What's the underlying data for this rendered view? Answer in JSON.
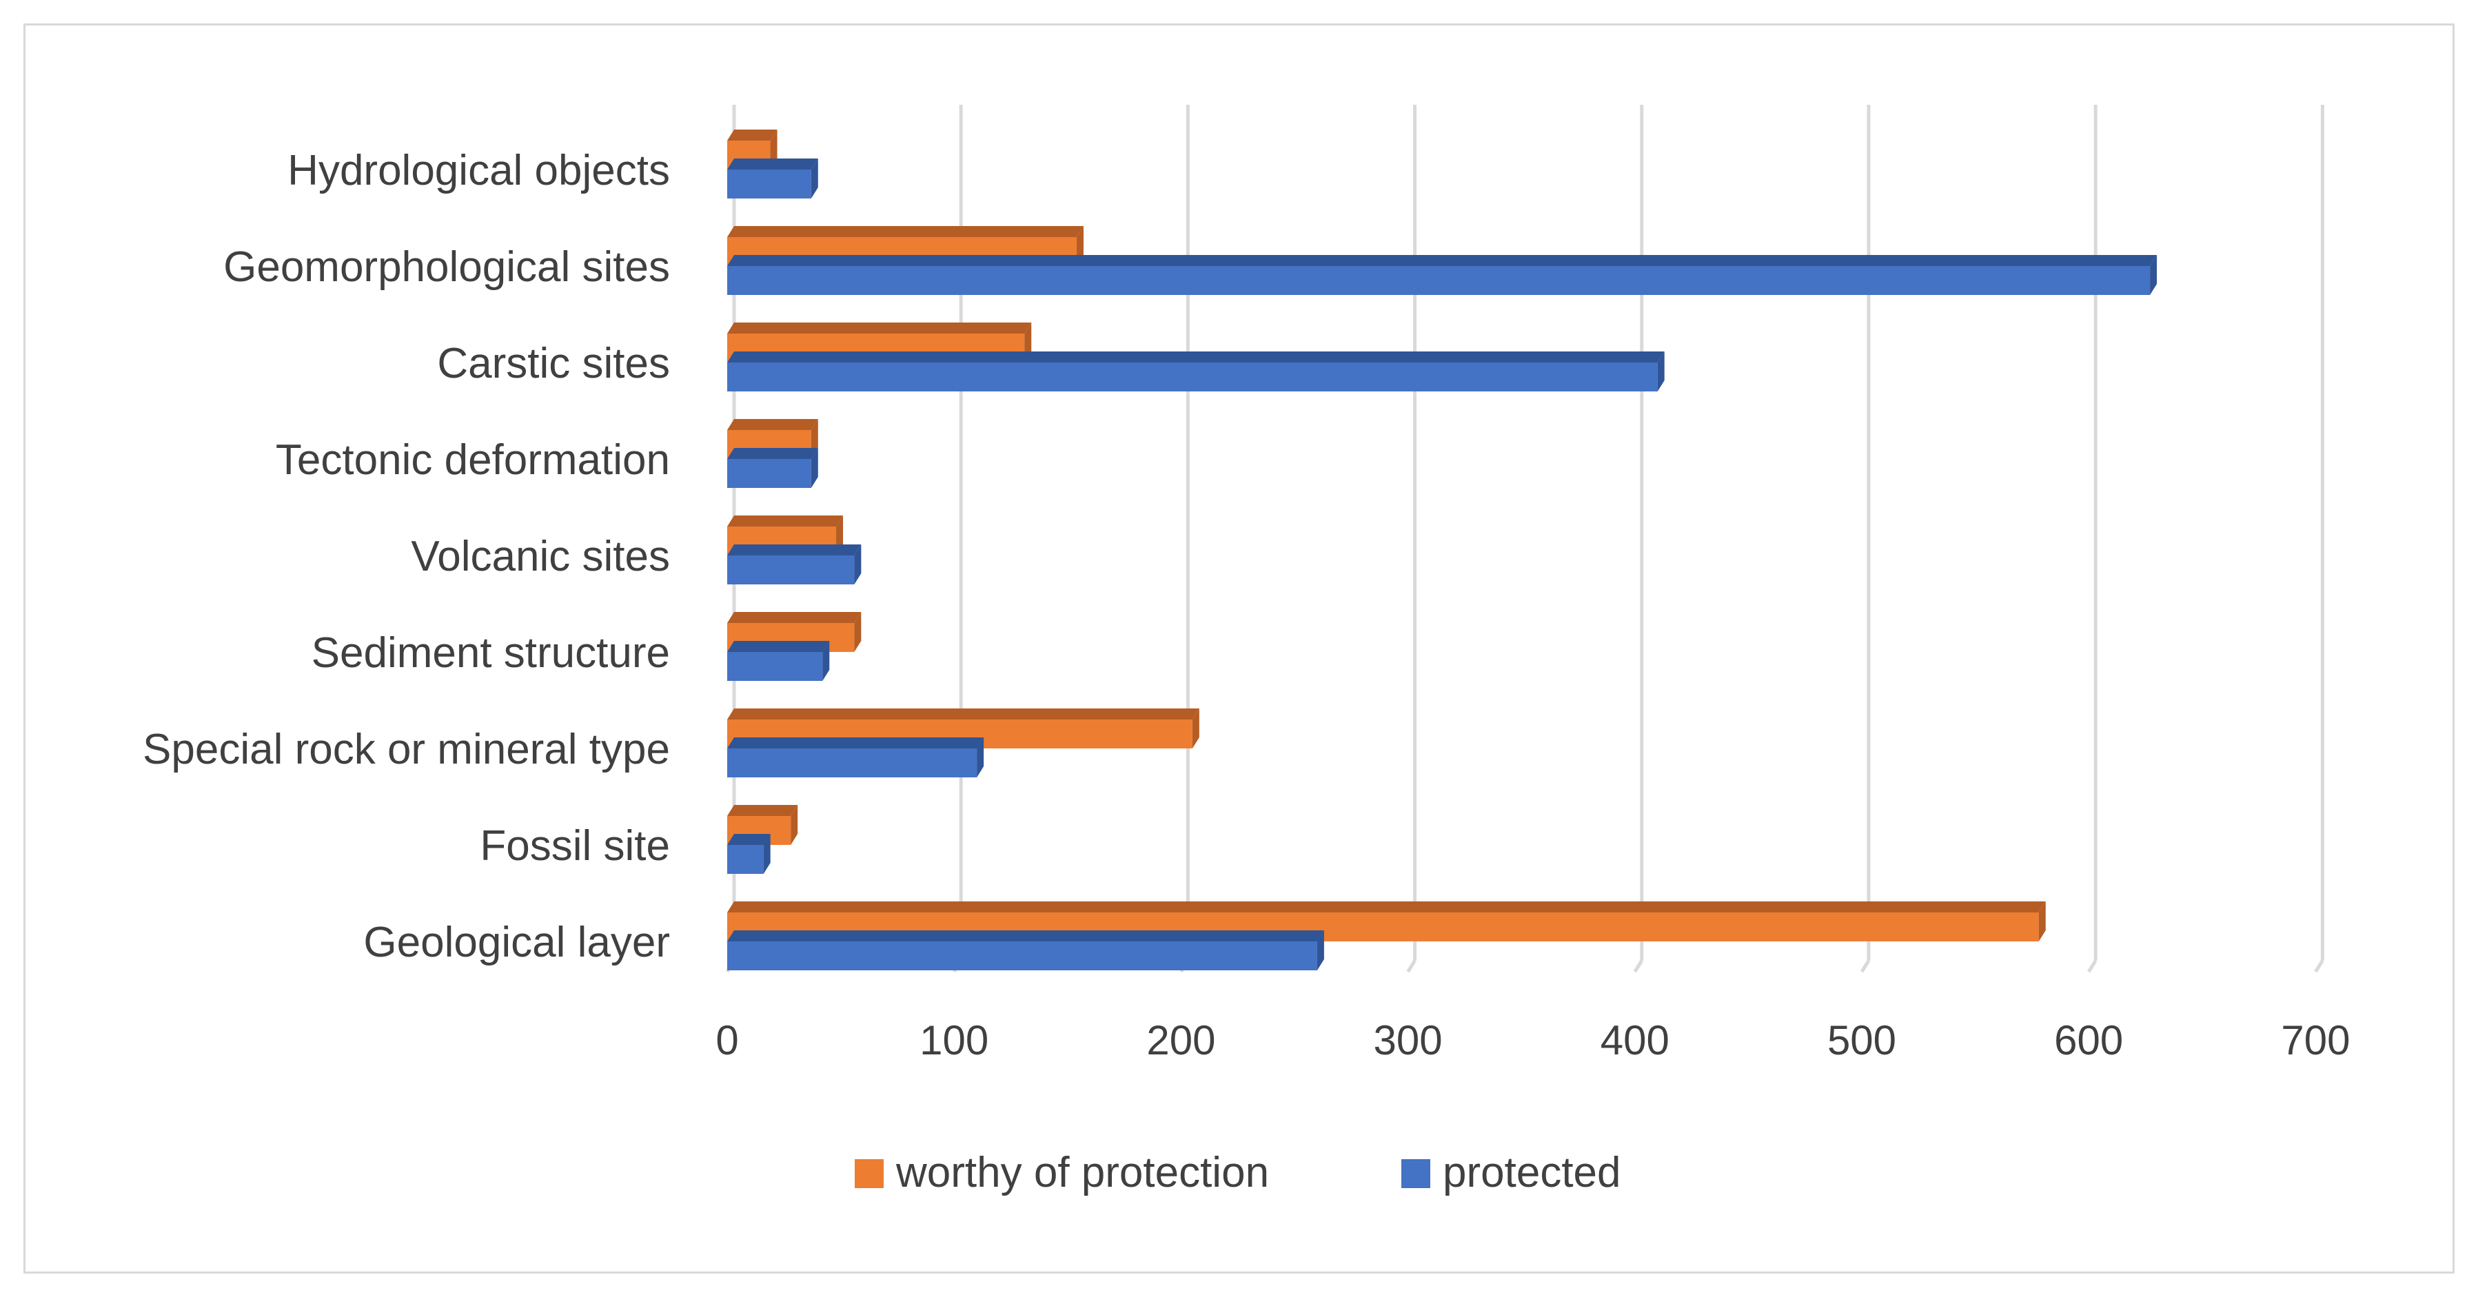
{
  "chart_data": {
    "type": "bar",
    "orientation": "horizontal",
    "title": "",
    "xlabel": "",
    "ylabel": "",
    "xlim": [
      0,
      700
    ],
    "x_ticks": [
      0,
      100,
      200,
      300,
      400,
      500,
      600,
      700
    ],
    "x_tick_labels": [
      "0",
      "100",
      "200",
      "300",
      "400",
      "500",
      "600",
      "700"
    ],
    "grid": "vertical gridlines on",
    "legend_position": "bottom",
    "categories": [
      "Hydrological objects",
      "Geomorphological sites",
      "Carstic sites",
      "Tectonic deformation",
      "Volcanic sites",
      "Sediment structure",
      "Special rock or mineral type",
      "Fossil site",
      "Geological layer"
    ],
    "series": [
      {
        "name": "worthy of protection",
        "color": "#ed7d31",
        "side_color": "#b55d24",
        "values": [
          19,
          154,
          131,
          37,
          48,
          56,
          205,
          28,
          578
        ]
      },
      {
        "name": "protected",
        "color": "#4472c4",
        "side_color": "#2f5597",
        "values": [
          37,
          627,
          410,
          37,
          56,
          42,
          110,
          16,
          260
        ]
      }
    ]
  }
}
